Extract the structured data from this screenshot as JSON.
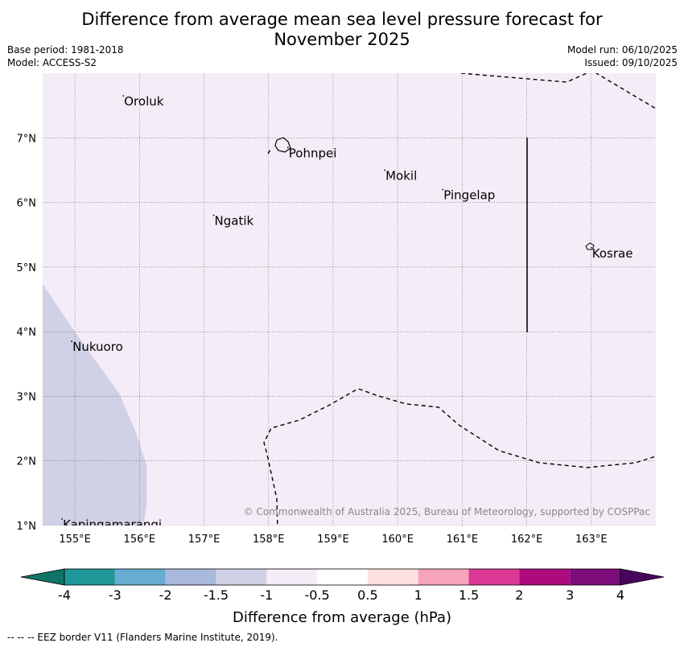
{
  "title": {
    "line1": "Difference from average mean sea level pressure forecast for",
    "line2": "November 2025"
  },
  "meta": {
    "base_period": "Base period: 1981-2018",
    "model": "Model: ACCESS-S2",
    "model_run": "Model run: 06/10/2025",
    "issued": "Issued: 09/10/2025"
  },
  "map": {
    "lat_labels": [
      "7°N",
      "6°N",
      "5°N",
      "4°N",
      "3°N",
      "2°N",
      "1°N"
    ],
    "lon_labels": [
      "155°E",
      "156°E",
      "157°E",
      "158°E",
      "159°E",
      "160°E",
      "161°E",
      "162°E",
      "163°E"
    ],
    "places": [
      {
        "name": "Oroluk",
        "lon": 155.75,
        "lat": 7.65
      },
      {
        "name": "Pohnpei",
        "lon": 158.3,
        "lat": 6.85
      },
      {
        "name": "Mokil",
        "lon": 159.8,
        "lat": 6.5
      },
      {
        "name": "Pingelap",
        "lon": 160.7,
        "lat": 6.2
      },
      {
        "name": "Ngatik",
        "lon": 157.15,
        "lat": 5.8
      },
      {
        "name": "Kosrae",
        "lon": 163.0,
        "lat": 5.3
      },
      {
        "name": "Nukuoro",
        "lon": 154.95,
        "lat": 3.85
      },
      {
        "name": "Kapingamarangi",
        "lon": 154.8,
        "lat": 1.1
      }
    ],
    "copyright": "© Commonwealth of Australia 2025, Bureau of Meteorology, supported by COSPPac"
  },
  "colorbar": {
    "colors": [
      "#0f7466",
      "#1f9698",
      "#66acd3",
      "#a8b9dc",
      "#d0d0e6",
      "#f4ecf6",
      "#ffffff",
      "#fde0e0",
      "#f7a3ba",
      "#dc3896",
      "#ad0a7d",
      "#7b0c7a",
      "#4a0460"
    ],
    "tick_labels": [
      "-4",
      "-3",
      "-2",
      "-1.5",
      "-1",
      "-0.5",
      "0.5",
      "1",
      "1.5",
      "2",
      "3",
      "4"
    ],
    "label": "Difference from average (hPa)"
  },
  "footer": "--  --  -- EEZ border V11 (Flanders Marine Institute, 2019)."
}
